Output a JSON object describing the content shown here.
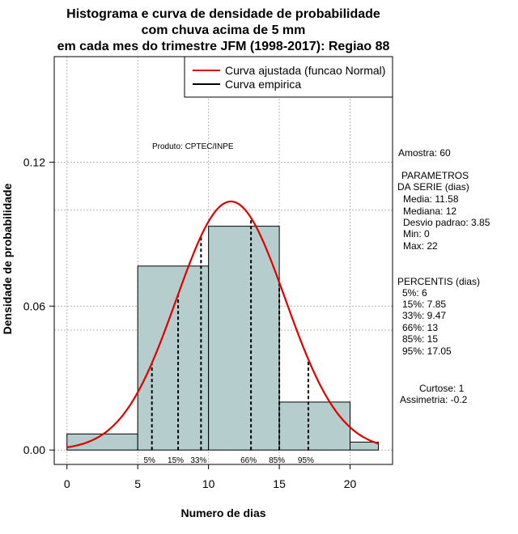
{
  "chart_data": {
    "type": "bar",
    "title_lines": [
      "Histograma e curva de densidade de probabilidade",
      "com chuva acima de 5 mm",
      "em cada mes do trimestre JFM (1998-2017): Regiao 88"
    ],
    "xlabel": "Numero de dias",
    "ylabel": "Densidade de probabilidade",
    "xlim": [
      -0.9,
      23
    ],
    "ylim": [
      -0.006,
      0.164
    ],
    "x_ticks": [
      0,
      5,
      10,
      15,
      20
    ],
    "x_tick_labels": [
      "0",
      "5",
      "10",
      "15",
      "20"
    ],
    "y_ticks": [
      0.0,
      0.06,
      0.12
    ],
    "y_tick_labels": [
      "0.00",
      "0.06",
      "0.12"
    ],
    "grid_x": [
      0,
      5,
      10,
      15,
      20
    ],
    "grid_y": [
      0.0,
      0.05,
      0.06,
      0.1,
      0.12
    ],
    "bins": [
      {
        "start": 0,
        "end": 5,
        "density": 0.0067
      },
      {
        "start": 5,
        "end": 10,
        "density": 0.0767
      },
      {
        "start": 10,
        "end": 15,
        "density": 0.0933
      },
      {
        "start": 15,
        "end": 20,
        "density": 0.02
      },
      {
        "start": 20,
        "end": 22,
        "density": 0.0033
      }
    ],
    "normal_fit": {
      "mean": 11.58,
      "sd": 3.85,
      "x_from": 0,
      "x_to": 22,
      "color": "#e00000"
    },
    "percentile_lines": [
      {
        "label": "5%",
        "x": 6
      },
      {
        "label": "15%",
        "x": 7.85
      },
      {
        "label": "33%",
        "x": 9.47
      },
      {
        "label": "66%",
        "x": 13
      },
      {
        "label": "85%",
        "x": 15
      },
      {
        "label": "95%",
        "x": 17.05
      }
    ],
    "legend": {
      "position": "top-right",
      "entries": [
        {
          "label": "Curva ajustada (funcao Normal)",
          "color": "#e00000"
        },
        {
          "label": "Curva empirica",
          "color": "#000000"
        }
      ]
    },
    "annotations": {
      "produto": "Produto: CPTEC/INPE",
      "amostra": "Amostra: 60",
      "parametros_lines": [
        "PARAMETROS",
        "DA SERIE (dias)"
      ],
      "parametros_values": [
        "Media: 11.58",
        "Mediana: 12",
        "Desvio padrao: 3.85",
        "Min: 0",
        "Max: 22"
      ],
      "percentis_title": "PERCENTIS (dias)",
      "percentis_values": [
        "5%: 6",
        "15%: 7.85",
        "33%: 9.47",
        "66%: 13",
        "85%: 15",
        "95%: 17.05"
      ],
      "curtose": "Curtose: 1",
      "assimetria": "Assimetria: -0.2"
    },
    "colors": {
      "bar_fill": "#b5cecd",
      "bar_stroke": "#000000",
      "grid": "#b4b4b4",
      "curve": "#e00000"
    }
  }
}
